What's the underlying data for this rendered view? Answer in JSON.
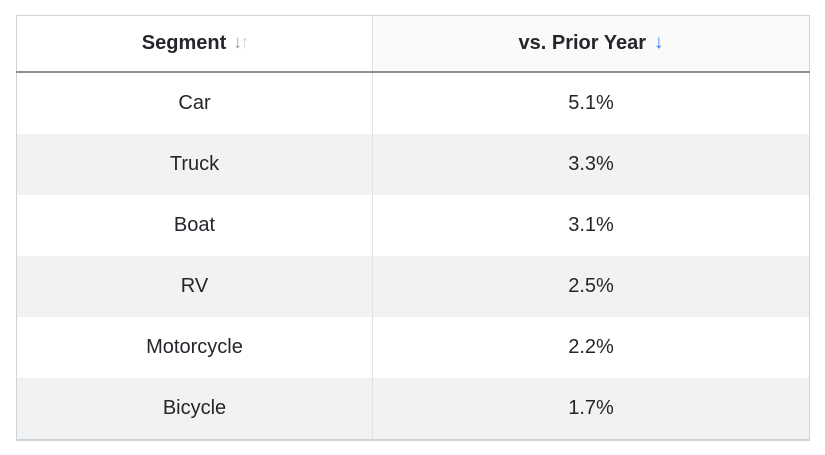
{
  "table": {
    "columns": [
      {
        "label": "Segment",
        "sort_state": "unsorted",
        "sort_icon": "sort-both-icon"
      },
      {
        "label": "vs. Prior Year",
        "sort_state": "descending",
        "sort_icon": "sort-descending-icon"
      }
    ],
    "rows": [
      {
        "segment": "Car",
        "vs_prior_year": "5.1%"
      },
      {
        "segment": "Truck",
        "vs_prior_year": "3.3%"
      },
      {
        "segment": "Boat",
        "vs_prior_year": "3.1%"
      },
      {
        "segment": "RV",
        "vs_prior_year": "2.5%"
      },
      {
        "segment": "Motorcycle",
        "vs_prior_year": "2.2%"
      },
      {
        "segment": "Bicycle",
        "vs_prior_year": "1.7%"
      }
    ]
  },
  "icons": {
    "sort_down_glyph": "↓",
    "sort_up_glyph": "↑"
  },
  "colors": {
    "sort_active_blue": "#2b7cf6",
    "sort_inactive_gray": "#9aa0a6",
    "stripe_gray": "#f2f2f2",
    "sorted_header_bg": "#fafafa",
    "outer_border": "#ccd4dc",
    "header_rule": "#8c9094",
    "text": "#24262b"
  },
  "chart_data": {
    "type": "table",
    "title": "",
    "columns": [
      "Segment",
      "vs. Prior Year"
    ],
    "rows": [
      [
        "Car",
        "5.1%"
      ],
      [
        "Truck",
        "3.3%"
      ],
      [
        "Boat",
        "3.1%"
      ],
      [
        "RV",
        "2.5%"
      ],
      [
        "Motorcycle",
        "2.2%"
      ],
      [
        "Bicycle",
        "1.7%"
      ]
    ],
    "categories": [
      "Car",
      "Truck",
      "Boat",
      "RV",
      "Motorcycle",
      "Bicycle"
    ],
    "values_percent": [
      5.1,
      3.3,
      3.1,
      2.5,
      2.2,
      1.7
    ],
    "sort": {
      "column": "vs. Prior Year",
      "direction": "descending"
    }
  }
}
